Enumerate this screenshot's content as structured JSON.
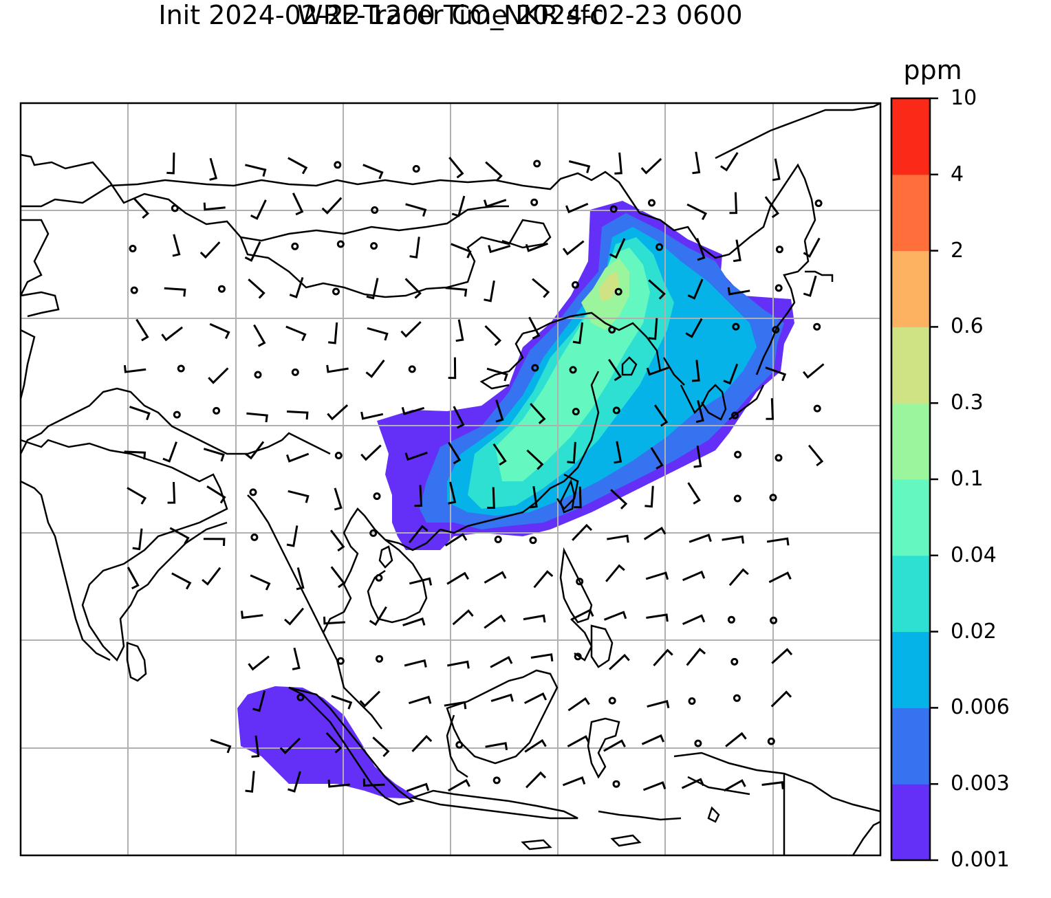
{
  "title": {
    "line1": "WRF-Tracer CO_NKR sfc",
    "line2": "Init 2024-02-22 1200 Time 2024-02-23 0600"
  },
  "colorbar": {
    "unit": "ppm",
    "levels": [
      "0.001",
      "0.003",
      "0.006",
      "0.02",
      "0.04",
      "0.1",
      "0.3",
      "0.6",
      "2",
      "4",
      "10"
    ],
    "colors": [
      "#6430f8",
      "#3573f0",
      "#06b3e9",
      "#2de0d2",
      "#64f8c0",
      "#9af59c",
      "#cfe284",
      "#fdb262",
      "#fe6f3c",
      "#fa2918"
    ]
  },
  "map": {
    "grid_lines": true,
    "features": [
      "coastlines",
      "country-borders",
      "wind-barbs",
      "co-tracer-fill"
    ]
  }
}
